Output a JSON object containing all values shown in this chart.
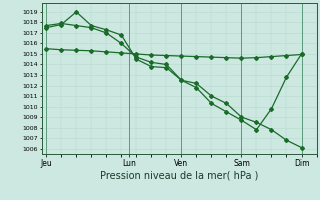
{
  "xlabel": "Pression niveau de la mer( hPa )",
  "bg_color": "#cce8e0",
  "grid_color_minor": "#b8d8d0",
  "grid_color_major": "#90c0b0",
  "line_color": "#1a6b2a",
  "ylim": [
    1005.5,
    1019.8
  ],
  "yticks": [
    1006,
    1007,
    1008,
    1009,
    1010,
    1011,
    1012,
    1013,
    1014,
    1015,
    1016,
    1017,
    1018,
    1019
  ],
  "xtick_labels": [
    "Jeu",
    "Lun",
    "Ven",
    "Sam",
    "Dim"
  ],
  "xtick_positions": [
    0,
    5.5,
    9,
    13,
    17
  ],
  "xlim": [
    -0.3,
    18.0
  ],
  "line1_x": [
    0,
    1,
    2,
    3,
    4,
    5,
    6,
    7,
    8,
    9,
    10,
    11,
    12,
    13,
    14,
    15,
    16,
    17
  ],
  "line1_y": [
    1015.5,
    1015.4,
    1015.35,
    1015.3,
    1015.2,
    1015.1,
    1015.0,
    1014.9,
    1014.85,
    1014.8,
    1014.75,
    1014.7,
    1014.65,
    1014.6,
    1014.65,
    1014.75,
    1014.85,
    1014.95
  ],
  "line2_x": [
    0,
    1,
    2,
    3,
    4,
    5,
    6,
    7,
    8,
    9,
    10,
    11,
    12,
    13,
    14,
    15,
    16,
    17
  ],
  "line2_y": [
    1017.7,
    1017.9,
    1017.7,
    1017.5,
    1017.0,
    1016.0,
    1014.7,
    1014.2,
    1014.0,
    1012.5,
    1012.2,
    1011.0,
    1010.3,
    1009.0,
    1008.5,
    1007.8,
    1006.8,
    1006.1
  ],
  "line3_x": [
    0,
    1,
    2,
    3,
    4,
    5,
    6,
    7,
    8,
    9,
    10,
    11,
    12,
    13,
    14,
    15,
    16,
    17
  ],
  "line3_y": [
    1017.5,
    1017.8,
    1019.0,
    1017.7,
    1017.3,
    1016.8,
    1014.5,
    1013.8,
    1013.7,
    1012.5,
    1011.8,
    1010.3,
    1009.5,
    1008.7,
    1007.8,
    1009.8,
    1012.8,
    1015.0
  ],
  "vline_positions": [
    0,
    5.5,
    9,
    13,
    17
  ],
  "vline_color": "#5a9a7a",
  "xlabel_fontsize": 7,
  "ytick_fontsize": 4.5,
  "xtick_fontsize": 5.5
}
